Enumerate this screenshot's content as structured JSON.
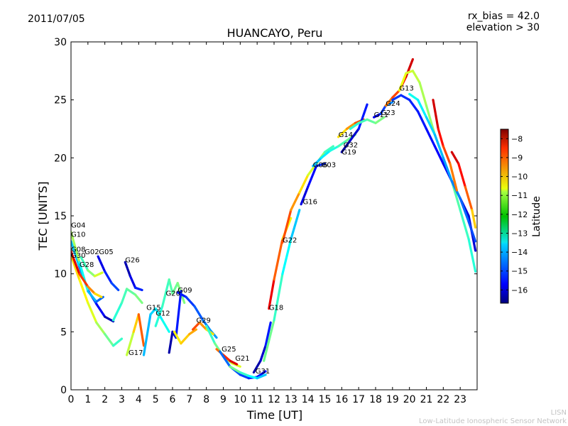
{
  "chart_data": {
    "type": "scatter",
    "title": "HUANCAYO, Peru",
    "date": "2011/07/05",
    "rx_bias": "rx_bias = 42.0",
    "elevation": "elevation > 30",
    "xlabel": "Time [UT]",
    "ylabel": "TEC [UNITS]",
    "xlim": [
      0,
      24
    ],
    "ylim": [
      0,
      30
    ],
    "xticks": [
      0,
      1,
      2,
      3,
      4,
      5,
      6,
      7,
      8,
      9,
      10,
      11,
      12,
      13,
      14,
      15,
      16,
      17,
      18,
      19,
      20,
      21,
      22,
      23
    ],
    "yticks": [
      0,
      5,
      10,
      15,
      20,
      25,
      30
    ],
    "colorbar": {
      "label": "Latitude",
      "range": [
        -16.7,
        -7.5
      ],
      "ticks": [
        -8,
        -9,
        -10,
        -11,
        -12,
        -13,
        -14,
        -15,
        -16
      ]
    },
    "satellite_labels": [
      {
        "name": "G04",
        "x": 0.0,
        "y": 14.0
      },
      {
        "name": "G10",
        "x": 0.0,
        "y": 13.2
      },
      {
        "name": "G08",
        "x": 0.0,
        "y": 11.9
      },
      {
        "name": "G30",
        "x": 0.0,
        "y": 11.4
      },
      {
        "name": "G02",
        "x": 0.8,
        "y": 11.7
      },
      {
        "name": "G05",
        "x": 1.65,
        "y": 11.7
      },
      {
        "name": "G28",
        "x": 0.5,
        "y": 10.6
      },
      {
        "name": "G26",
        "x": 3.2,
        "y": 11.0
      },
      {
        "name": "G15",
        "x": 4.45,
        "y": 6.9
      },
      {
        "name": "G12",
        "x": 5.0,
        "y": 6.4
      },
      {
        "name": "G20",
        "x": 5.6,
        "y": 8.1
      },
      {
        "name": "G09",
        "x": 6.3,
        "y": 8.4
      },
      {
        "name": "G29",
        "x": 7.4,
        "y": 5.8
      },
      {
        "name": "G17",
        "x": 3.4,
        "y": 3.0
      },
      {
        "name": "G25",
        "x": 8.9,
        "y": 3.3
      },
      {
        "name": "G21",
        "x": 9.7,
        "y": 2.5
      },
      {
        "name": "G31",
        "x": 10.9,
        "y": 1.4
      },
      {
        "name": "G18",
        "x": 11.7,
        "y": 6.9
      },
      {
        "name": "G22",
        "x": 12.5,
        "y": 12.7
      },
      {
        "name": "G16",
        "x": 13.7,
        "y": 16.0
      },
      {
        "name": "G06",
        "x": 14.3,
        "y": 19.2
      },
      {
        "name": "G03",
        "x": 14.8,
        "y": 19.2
      },
      {
        "name": "G14",
        "x": 15.8,
        "y": 21.8
      },
      {
        "name": "G32",
        "x": 16.1,
        "y": 20.9
      },
      {
        "name": "G19",
        "x": 16.0,
        "y": 20.3
      },
      {
        "name": "G11",
        "x": 17.9,
        "y": 23.5
      },
      {
        "name": "G23",
        "x": 18.3,
        "y": 23.7
      },
      {
        "name": "G24",
        "x": 18.6,
        "y": 24.5
      },
      {
        "name": "G13",
        "x": 19.4,
        "y": 25.8
      }
    ],
    "series": [
      {
        "name": "arc-a",
        "lat": [
          -13.5,
          -14.5,
          -15.5,
          -16.5
        ],
        "x": [
          0,
          0.5,
          1.0,
          1.5,
          2.0,
          2.5
        ],
        "y": [
          12.8,
          10.6,
          8.6,
          7.4,
          6.3,
          5.9
        ]
      },
      {
        "name": "arc-b",
        "lat": [
          -11,
          -13,
          -14,
          -15
        ],
        "x": [
          0,
          0.5,
          1.0,
          1.5,
          1.9
        ],
        "y": [
          13.6,
          11.0,
          8.5,
          7.6,
          8.0
        ]
      },
      {
        "name": "arc-c",
        "lat": [
          -10.5,
          -11,
          -12,
          -13
        ],
        "x": [
          0,
          0.5,
          1.0,
          1.5,
          2.0,
          2.5,
          3.0
        ],
        "y": [
          11.6,
          9.5,
          7.5,
          5.8,
          4.8,
          3.8,
          4.4
        ]
      },
      {
        "name": "arc-d",
        "lat": [
          -8,
          -9,
          -10,
          -11
        ],
        "x": [
          0,
          0.5,
          1.0,
          1.4,
          1.8
        ],
        "y": [
          11.9,
          10.0,
          8.9,
          8.3,
          8.0
        ]
      },
      {
        "name": "arc-e",
        "lat": [
          -13,
          -12,
          -11
        ],
        "x": [
          0.6,
          1.0,
          1.4,
          1.85
        ],
        "y": [
          11.4,
          10.3,
          9.8,
          10.1
        ]
      },
      {
        "name": "arc-f",
        "lat": [
          -16,
          -15.5,
          -15,
          -14.8
        ],
        "x": [
          1.6,
          2.0,
          2.4,
          2.8
        ],
        "y": [
          11.5,
          10.2,
          9.2,
          8.6
        ]
      },
      {
        "name": "arc-g",
        "lat": [
          -13,
          -12.5,
          -12
        ],
        "x": [
          2.5,
          3.0,
          3.3,
          3.8,
          4.2
        ],
        "y": [
          6.0,
          7.5,
          8.7,
          8.2,
          7.5
        ]
      },
      {
        "name": "arc-h",
        "lat": [
          -16.5,
          -16,
          -15.5,
          -15
        ],
        "x": [
          3.2,
          3.5,
          3.8,
          4.2
        ],
        "y": [
          11.0,
          9.8,
          8.8,
          8.6
        ]
      },
      {
        "name": "arc-i",
        "lat": [
          -12,
          -11,
          -10,
          -9
        ],
        "x": [
          3.3,
          3.7,
          4.0,
          4.3
        ],
        "y": [
          3.0,
          5.0,
          6.5,
          3.8
        ]
      },
      {
        "name": "arc-j",
        "lat": [
          -14,
          -13.5,
          -13
        ],
        "x": [
          4.3,
          4.7,
          5.0,
          5.4,
          5.8
        ],
        "y": [
          3.0,
          6.5,
          7.0,
          6.0,
          5.0
        ]
      },
      {
        "name": "arc-k",
        "lat": [
          -13,
          -12.5,
          -12
        ],
        "x": [
          5.0,
          5.4,
          5.8,
          6.0,
          6.3,
          6.7
        ],
        "y": [
          5.5,
          7.2,
          9.5,
          8.3,
          9.2,
          7.5
        ]
      },
      {
        "name": "arc-l",
        "lat": [
          -16.5,
          -16,
          -15
        ],
        "x": [
          5.8,
          6.0,
          6.2,
          6.5
        ],
        "y": [
          3.2,
          5.0,
          4.5,
          8.5
        ]
      },
      {
        "name": "arc-m",
        "lat": [
          -11,
          -10.5,
          -10
        ],
        "x": [
          6.1,
          6.5,
          7.0,
          7.4
        ],
        "y": [
          5.0,
          4.0,
          4.8,
          5.2
        ]
      },
      {
        "name": "arc-n",
        "lat": [
          -15.5,
          -15,
          -14.5,
          -14
        ],
        "x": [
          6.3,
          6.8,
          7.3,
          7.8,
          8.2,
          8.6
        ],
        "y": [
          8.4,
          8.0,
          7.2,
          6.0,
          5.2,
          4.5
        ]
      },
      {
        "name": "arc-o",
        "lat": [
          -9,
          -10,
          -11
        ],
        "x": [
          7.2,
          7.6,
          8.0,
          8.4
        ],
        "y": [
          5.2,
          5.8,
          5.2,
          4.8
        ]
      },
      {
        "name": "arc-p",
        "lat": [
          -13,
          -12,
          -11
        ],
        "x": [
          8.0,
          8.5,
          9.0,
          9.5,
          10.0
        ],
        "y": [
          5.5,
          4.0,
          2.9,
          2.3,
          2.0
        ]
      },
      {
        "name": "arc-q",
        "lat": [
          -10,
          -9,
          -8
        ],
        "x": [
          8.6,
          9.0,
          9.4,
          9.8
        ],
        "y": [
          3.5,
          3.0,
          2.5,
          2.2
        ]
      },
      {
        "name": "arc-r",
        "lat": [
          -14.5,
          -15,
          -15.5
        ],
        "x": [
          8.8,
          9.4,
          10.0,
          10.5,
          11.0,
          11.5
        ],
        "y": [
          3.3,
          2.0,
          1.3,
          1.0,
          1.1,
          1.6
        ]
      },
      {
        "name": "arc-s",
        "lat": [
          -12,
          -13,
          -14
        ],
        "x": [
          9.4,
          10.0,
          10.5,
          11.0,
          11.5
        ],
        "y": [
          2.0,
          1.5,
          1.2,
          1.0,
          1.3
        ]
      },
      {
        "name": "arc-t",
        "lat": [
          -16.5,
          -16,
          -15
        ],
        "x": [
          10.8,
          11.2,
          11.5,
          11.8
        ],
        "y": [
          1.5,
          2.5,
          3.8,
          5.8
        ]
      },
      {
        "name": "arc-u",
        "lat": [
          -8,
          -9,
          -10,
          -12
        ],
        "x": [
          11.7,
          12.0,
          12.5,
          13.0
        ],
        "y": [
          7.0,
          9.5,
          13.0,
          14.8
        ]
      },
      {
        "name": "arc-v",
        "lat": [
          -12,
          -13,
          -14
        ],
        "x": [
          11.4,
          12.0,
          12.5,
          13.0,
          13.5
        ],
        "y": [
          2.5,
          6.0,
          10.0,
          13.0,
          15.5
        ]
      },
      {
        "name": "arc-w",
        "lat": [
          -9,
          -10,
          -11,
          -12,
          -13
        ],
        "x": [
          12.5,
          13.0,
          13.5,
          14.0,
          14.5,
          15.0,
          15.5
        ],
        "y": [
          12.7,
          15.5,
          17.0,
          18.5,
          19.5,
          20.5,
          21.0
        ]
      },
      {
        "name": "arc-x",
        "lat": [
          -16,
          -15.5,
          -15
        ],
        "x": [
          13.6,
          14.0,
          14.5,
          15.0
        ],
        "y": [
          16.0,
          17.5,
          19.3,
          19.5
        ]
      },
      {
        "name": "arc-y",
        "lat": [
          -14,
          -13,
          -12
        ],
        "x": [
          14.3,
          14.8,
          15.3,
          15.8,
          16.3,
          16.8
        ],
        "y": [
          19.3,
          20.0,
          20.6,
          21.0,
          21.5,
          22.0
        ]
      },
      {
        "name": "arc-z",
        "lat": [
          -11,
          -10,
          -9
        ],
        "x": [
          15.8,
          16.3,
          16.8,
          17.3
        ],
        "y": [
          21.8,
          22.5,
          23.0,
          23.3
        ]
      },
      {
        "name": "arc-aa",
        "lat": [
          -16.5,
          -16,
          -15
        ],
        "x": [
          16.0,
          16.5,
          17.0,
          17.5
        ],
        "y": [
          20.5,
          21.5,
          22.5,
          24.6
        ]
      },
      {
        "name": "arc-ab",
        "lat": [
          -13,
          -12.5,
          -12
        ],
        "x": [
          16.5,
          17.0,
          17.5,
          18.0,
          18.5
        ],
        "y": [
          22.5,
          23.0,
          23.3,
          23.0,
          23.5
        ]
      },
      {
        "name": "arc-ac",
        "lat": [
          -16,
          -15,
          -14
        ],
        "x": [
          17.9,
          18.3,
          18.6,
          19.0
        ],
        "y": [
          23.5,
          23.8,
          24.5,
          24.8
        ]
      },
      {
        "name": "arc-ad",
        "lat": [
          -10,
          -9,
          -8
        ],
        "x": [
          18.6,
          19.0,
          19.4,
          19.8,
          20.2
        ],
        "y": [
          24.5,
          25.2,
          25.8,
          27.0,
          28.5
        ]
      },
      {
        "name": "arc-ae",
        "lat": [
          -11,
          -12,
          -13
        ],
        "x": [
          19.4,
          19.8,
          20.2,
          20.6,
          21.0,
          21.5,
          22.0,
          22.5,
          23.0,
          23.5,
          23.9
        ],
        "y": [
          25.8,
          27.3,
          27.5,
          26.5,
          24.5,
          22.0,
          20.0,
          18.0,
          15.5,
          13.0,
          10.2
        ]
      },
      {
        "name": "arc-af",
        "lat": [
          -15,
          -15.5,
          -16
        ],
        "x": [
          19.0,
          19.5,
          20.0,
          20.5,
          21.0,
          21.5,
          22.0,
          22.5,
          23.0,
          23.5,
          23.9
        ],
        "y": [
          25.0,
          25.4,
          25.0,
          24.0,
          22.5,
          21.0,
          19.5,
          18.0,
          16.5,
          15.0,
          12.0
        ]
      },
      {
        "name": "arc-ag",
        "lat": [
          -13,
          -14,
          -15
        ],
        "x": [
          20.0,
          20.5,
          21.0,
          21.5,
          22.0,
          22.5,
          23.0,
          23.5,
          23.9
        ],
        "y": [
          25.5,
          25.0,
          23.5,
          22.0,
          20.0,
          18.0,
          16.5,
          14.5,
          12.8
        ]
      },
      {
        "name": "arc-ah",
        "lat": [
          -8,
          -9,
          -10
        ],
        "x": [
          21.4,
          21.7,
          22.0,
          22.4,
          22.8
        ],
        "y": [
          25.0,
          22.5,
          21.0,
          19.5,
          17.2
        ]
      },
      {
        "name": "arc-ai",
        "lat": [
          -8,
          -9,
          -11
        ],
        "x": [
          22.5,
          22.9,
          23.3,
          23.7,
          23.9
        ],
        "y": [
          20.5,
          19.5,
          17.5,
          15.5,
          14.0
        ]
      }
    ]
  },
  "footer": {
    "line1": "LISN",
    "line2": "Low-Latitude Ionospheric Sensor Network"
  }
}
